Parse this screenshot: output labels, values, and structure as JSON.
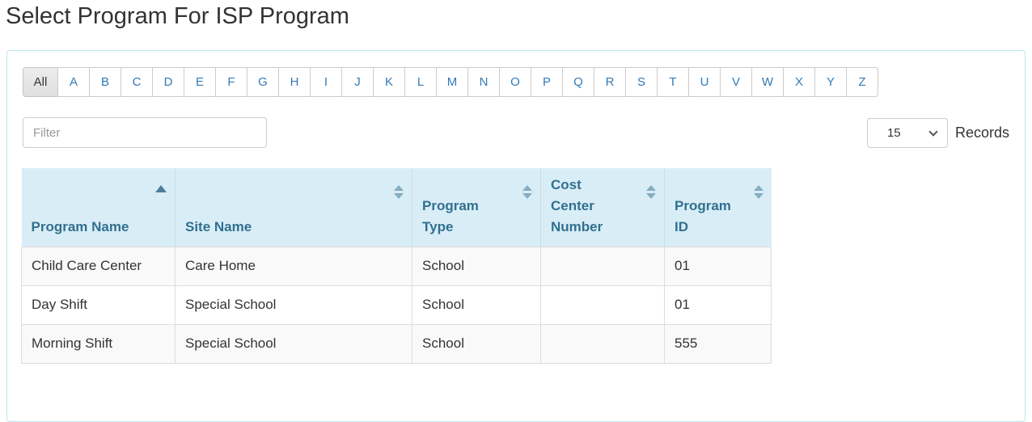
{
  "page_title": "Select Program For ISP Program",
  "alphabet_bar": {
    "selected": "All",
    "items": [
      "All",
      "A",
      "B",
      "C",
      "D",
      "E",
      "F",
      "G",
      "H",
      "I",
      "J",
      "K",
      "L",
      "M",
      "N",
      "O",
      "P",
      "Q",
      "R",
      "S",
      "T",
      "U",
      "V",
      "W",
      "X",
      "Y",
      "Z"
    ]
  },
  "filter": {
    "placeholder": "Filter"
  },
  "records_control": {
    "selected_value": "15",
    "label": "Records"
  },
  "table": {
    "columns": [
      {
        "label": "Program Name",
        "sort": "asc"
      },
      {
        "label": "Site Name",
        "sort": "both"
      },
      {
        "label": "Program Type",
        "sort": "both"
      },
      {
        "label": "Cost Center Number",
        "sort": "both"
      },
      {
        "label": "Program ID",
        "sort": "both"
      }
    ],
    "rows": [
      [
        "Child Care Center",
        "Care Home",
        "School",
        "",
        "01"
      ],
      [
        "Day Shift",
        "Special School",
        "School",
        "",
        "01"
      ],
      [
        "Morning Shift",
        "Special School",
        "School",
        "",
        "555"
      ]
    ]
  },
  "colors": {
    "header_bg": "#d9edf7",
    "header_text": "#31708f",
    "link_blue": "#337ab7",
    "panel_border": "#bce8f1",
    "row_stripe": "#f9f9f9",
    "table_border": "#dddddd",
    "sort_active_arrow": "#4a7e9b",
    "sort_inactive_arrow": "#84adc2"
  }
}
